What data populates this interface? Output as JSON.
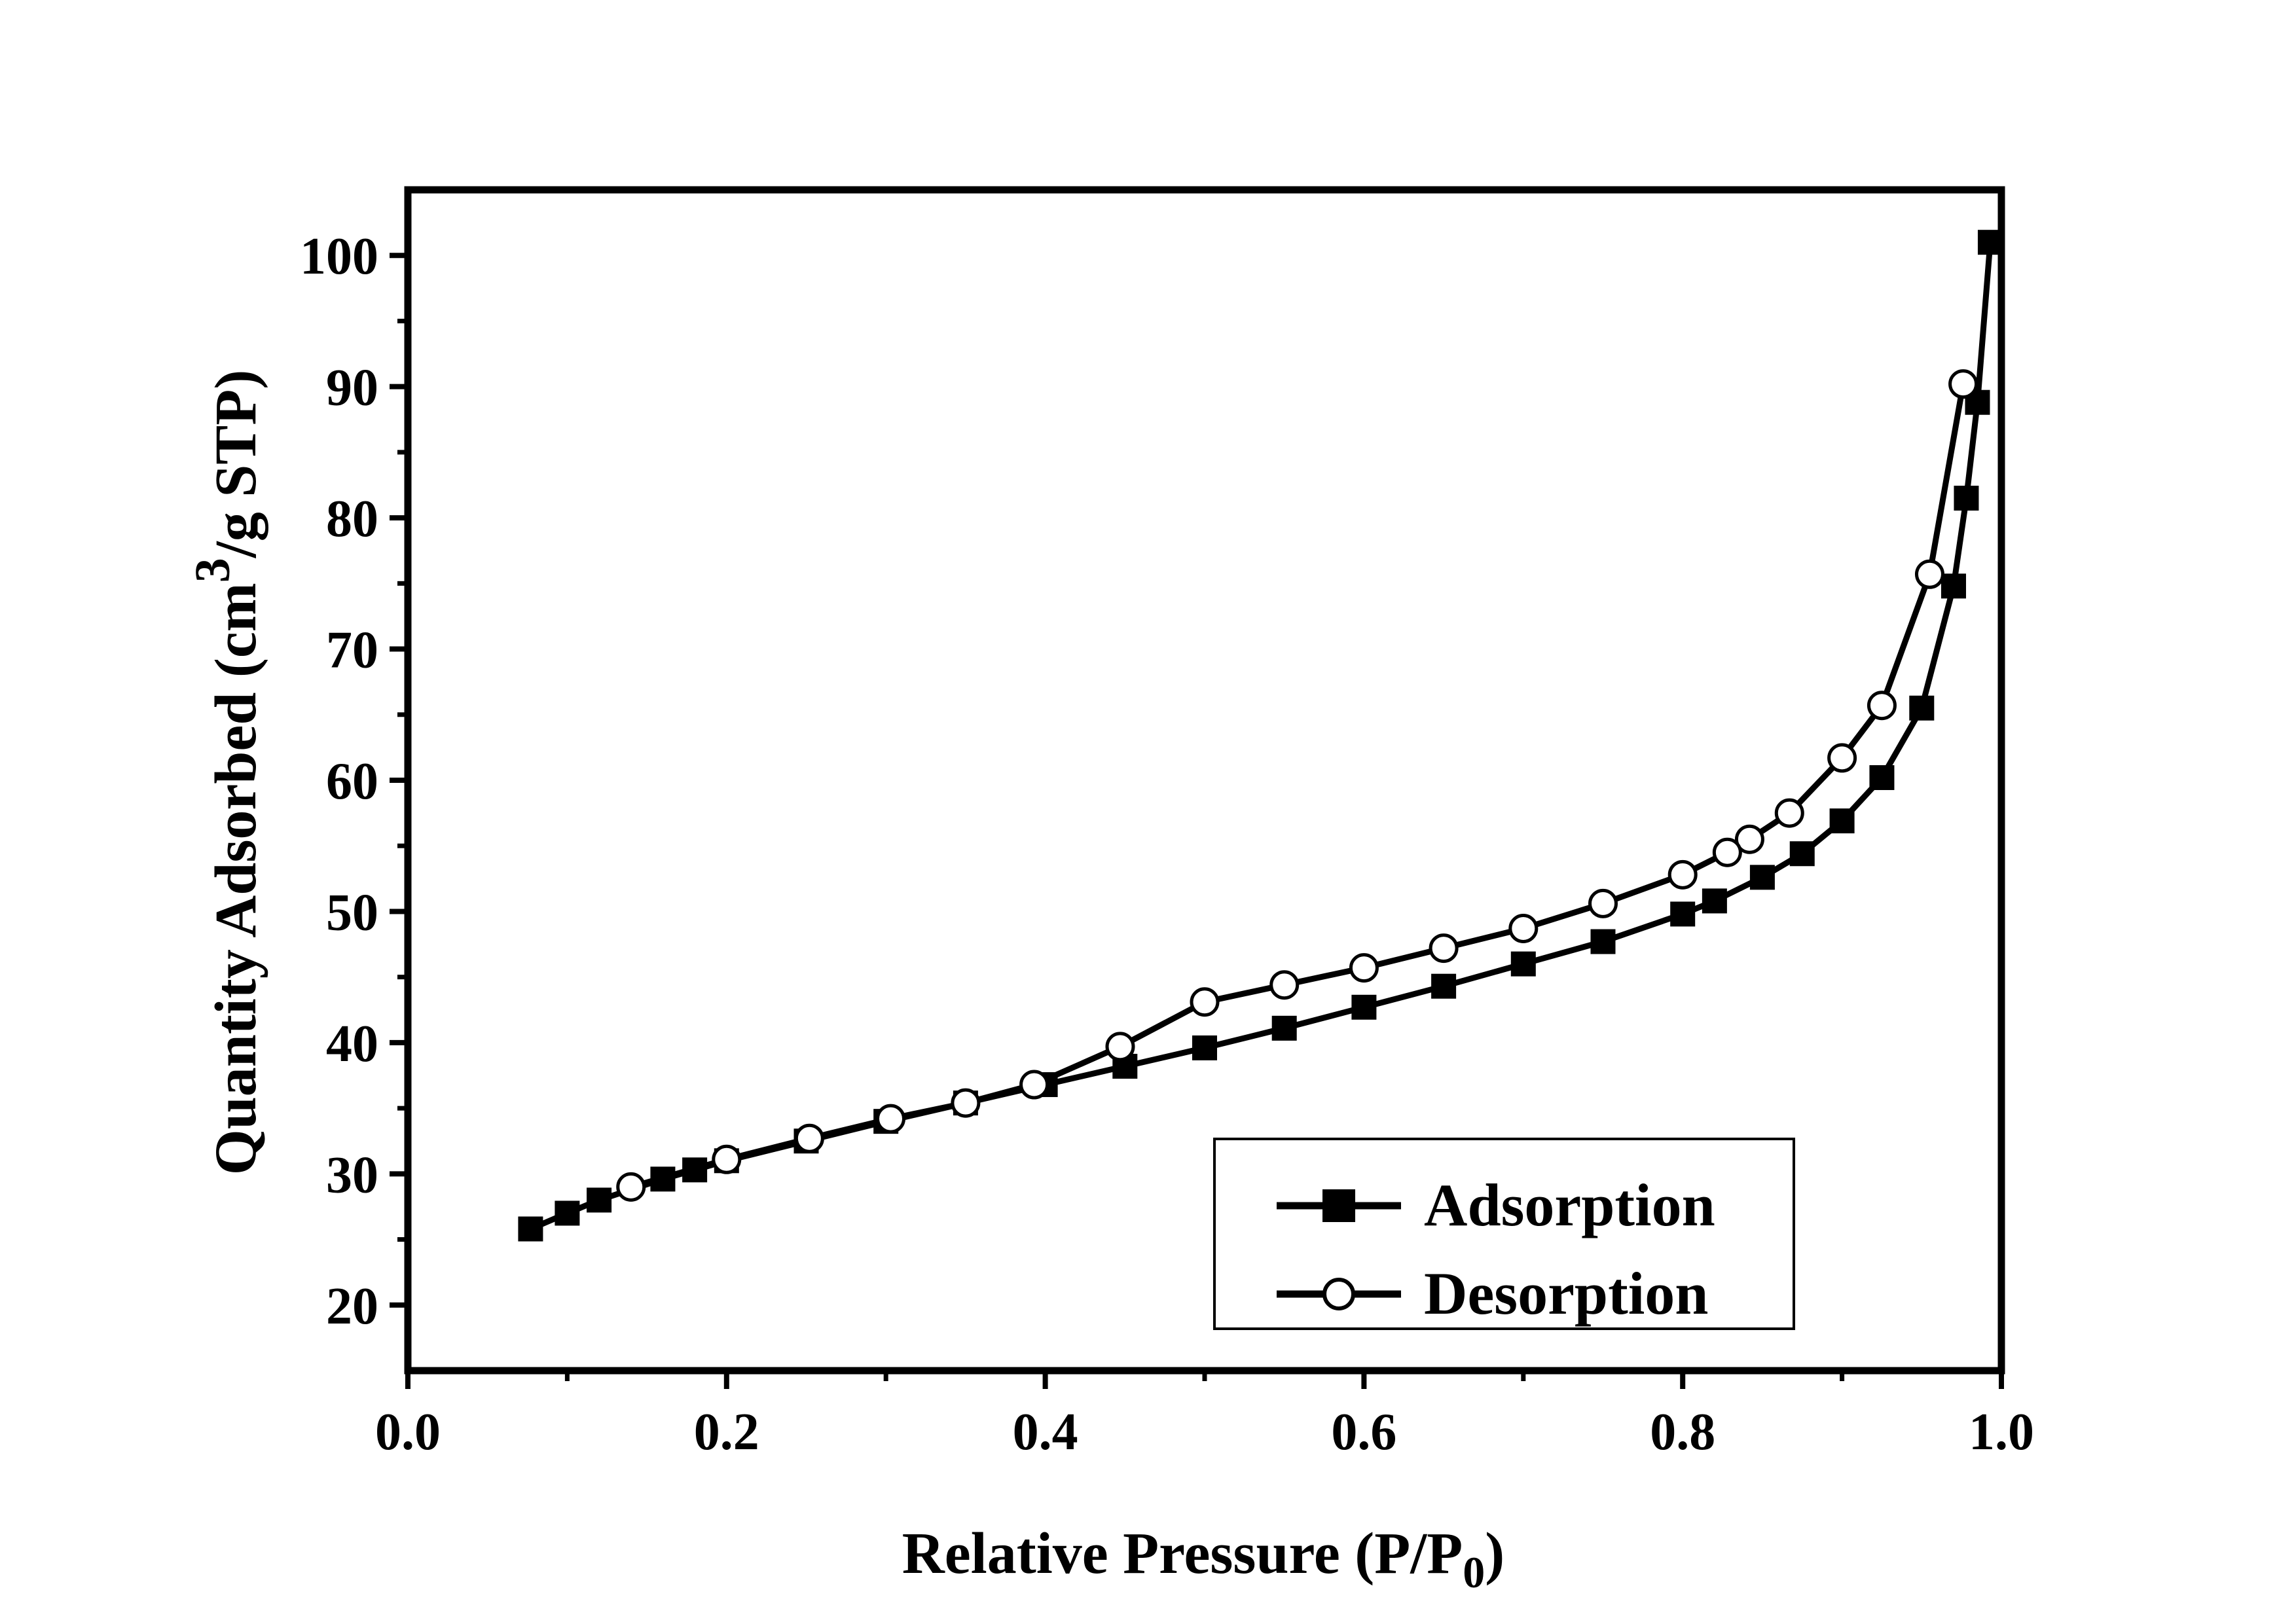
{
  "chart_data": {
    "type": "line",
    "xlabel": {
      "main": "Relative Pressure (P/P",
      "sub": "0",
      "close": ")"
    },
    "ylabel": {
      "main": "Quantity Adsorbed (cm",
      "sup": "3",
      "rest": "/g STP)"
    },
    "xlim": [
      0.0,
      1.0
    ],
    "ylim": [
      15,
      105
    ],
    "x_ticks": [
      0.0,
      0.2,
      0.4,
      0.6,
      0.8,
      1.0
    ],
    "x_tick_labels": [
      "0.0",
      "0.2",
      "0.4",
      "0.6",
      "0.8",
      "1.0"
    ],
    "y_ticks": [
      20,
      30,
      40,
      50,
      60,
      70,
      80,
      90,
      100
    ],
    "y_tick_labels": [
      "20",
      "30",
      "40",
      "50",
      "60",
      "70",
      "80",
      "90",
      "100"
    ],
    "x_minor_ticks": [
      0.1,
      0.3,
      0.5,
      0.7,
      0.9
    ],
    "y_minor_ticks": [
      25,
      35,
      45,
      55,
      65,
      75,
      85,
      95
    ],
    "grid": false,
    "legend": {
      "placement": "bottom-right"
    },
    "series": [
      {
        "name": "Adsorption",
        "marker": "filled-square",
        "color": "#000000",
        "x": [
          0.077,
          0.1,
          0.12,
          0.16,
          0.18,
          0.2,
          0.25,
          0.3,
          0.35,
          0.4,
          0.45,
          0.5,
          0.55,
          0.6,
          0.65,
          0.7,
          0.75,
          0.8,
          0.82,
          0.85,
          0.875,
          0.9,
          0.925,
          0.95,
          0.97,
          0.978,
          0.985,
          0.993
        ],
        "y": [
          25.8,
          27.0,
          28.0,
          29.6,
          30.3,
          31.0,
          32.5,
          34.0,
          35.4,
          36.8,
          38.2,
          39.6,
          41.1,
          42.7,
          44.3,
          46.0,
          47.7,
          49.8,
          50.8,
          52.6,
          54.4,
          56.9,
          60.2,
          65.5,
          74.8,
          81.5,
          88.8,
          101.0
        ]
      },
      {
        "name": "Desorption",
        "marker": "open-circle",
        "color": "#000000",
        "x": [
          0.976,
          0.955,
          0.925,
          0.9,
          0.867,
          0.842,
          0.828,
          0.8,
          0.75,
          0.7,
          0.65,
          0.6,
          0.55,
          0.5,
          0.447,
          0.393,
          0.35,
          0.303,
          0.252,
          0.2,
          0.14
        ],
        "y": [
          90.2,
          75.7,
          65.7,
          61.7,
          57.5,
          55.5,
          54.5,
          52.8,
          50.6,
          48.7,
          47.2,
          45.7,
          44.4,
          43.1,
          39.7,
          36.8,
          35.4,
          34.2,
          32.7,
          31.1,
          29.0
        ]
      }
    ]
  }
}
